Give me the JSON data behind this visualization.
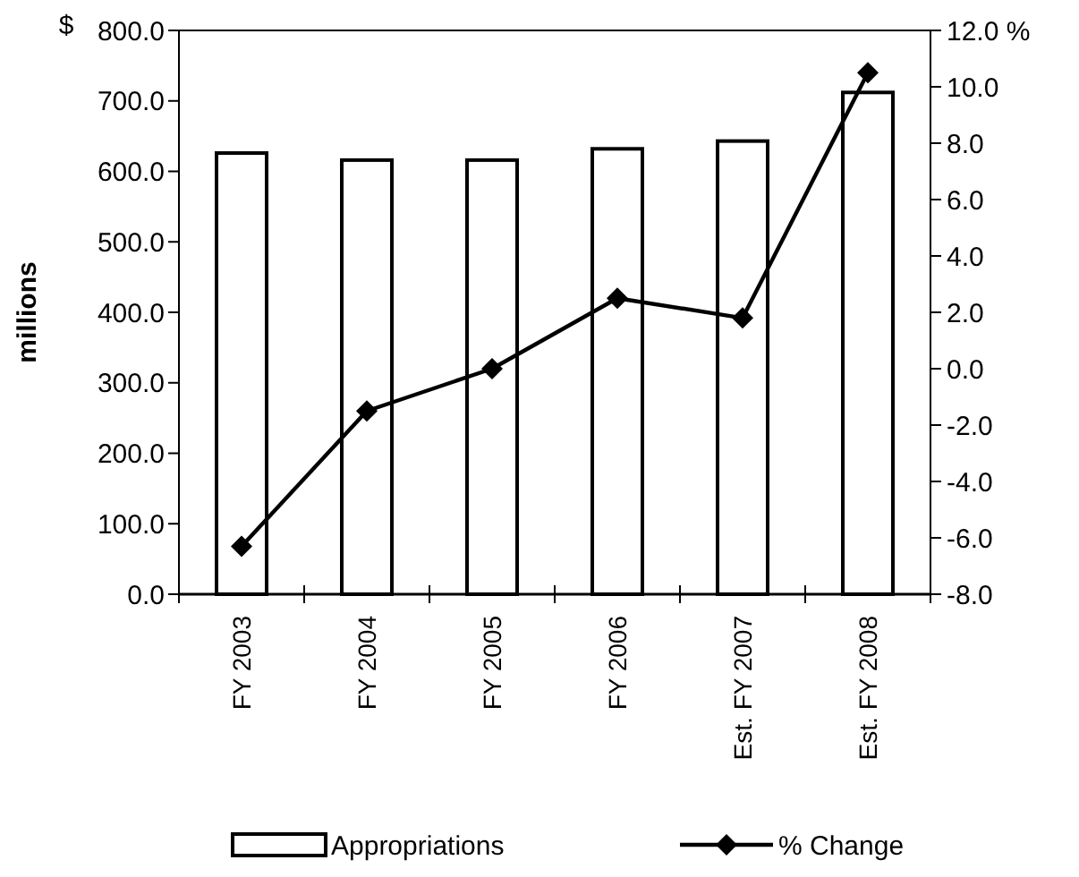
{
  "chart_data": {
    "type": "bar",
    "ylabel": "millions",
    "annotations": [
      "$"
    ],
    "categories": [
      "FY 2003",
      "FY 2004",
      "FY 2005",
      "FY 2006",
      "Est. FY 2007",
      "Est. FY 2008"
    ],
    "series": [
      {
        "name": "Appropriations",
        "color": "#ffffff",
        "values": [
          626,
          616,
          616,
          632,
          643,
          712
        ]
      },
      {
        "name": "% Change",
        "type": "line",
        "axis": "y2",
        "color": "#000000",
        "marker": "diamond",
        "values": [
          -6.3,
          -1.5,
          0.0,
          2.5,
          1.8,
          10.5
        ]
      }
    ],
    "ylim": [
      0,
      800
    ],
    "yticks": [
      {
        "value": 0,
        "label": "0.0"
      },
      {
        "value": 100,
        "label": "100.0"
      },
      {
        "value": 200,
        "label": "200.0"
      },
      {
        "value": 300,
        "label": "300.0"
      },
      {
        "value": 400,
        "label": "400.0"
      },
      {
        "value": 500,
        "label": "500.0"
      },
      {
        "value": 600,
        "label": "600.0"
      },
      {
        "value": 700,
        "label": "700.0"
      },
      {
        "value": 800,
        "label": "800.0"
      }
    ],
    "y2lim": [
      -8,
      12
    ],
    "y2ticks": [
      {
        "value": -8,
        "label": "-8.0"
      },
      {
        "value": -6,
        "label": "-6.0"
      },
      {
        "value": -4,
        "label": "-4.0"
      },
      {
        "value": -2,
        "label": "-2.0"
      },
      {
        "value": 0,
        "label": "0.0"
      },
      {
        "value": 2,
        "label": "2.0"
      },
      {
        "value": 4,
        "label": "4.0"
      },
      {
        "value": 6,
        "label": "6.0"
      },
      {
        "value": 8,
        "label": "8.0"
      },
      {
        "value": 10,
        "label": "10.0"
      },
      {
        "value": 12,
        "label": "12.0 %"
      }
    ],
    "legend": "bottom",
    "grid": false
  }
}
